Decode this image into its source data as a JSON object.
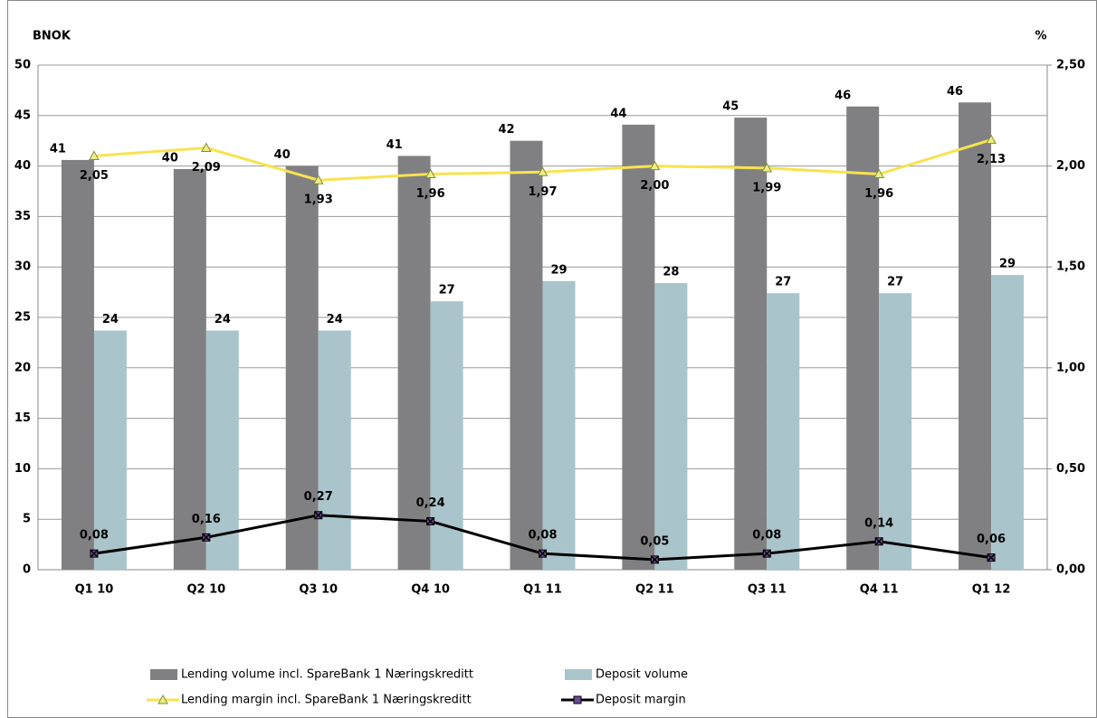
{
  "chart_data": {
    "type": "bar-line",
    "y_label": "BNOK",
    "y2_label": "%",
    "categories": [
      "Q1 10",
      "Q2 10",
      "Q3 10",
      "Q4 10",
      "Q1 11",
      "Q2 11",
      "Q3 11",
      "Q4 11",
      "Q1 12"
    ],
    "series": [
      {
        "name": "Lending volume incl. SpareBank 1 Næringskreditt",
        "type": "bar",
        "color": "#808083",
        "values": [
          40.6,
          39.7,
          40.0,
          41.0,
          42.5,
          44.1,
          44.8,
          45.9,
          46.3
        ],
        "value_labels": [
          "41",
          "40",
          "40",
          "41",
          "42",
          "44",
          "45",
          "46",
          "46"
        ]
      },
      {
        "name": "Deposit volume",
        "type": "bar",
        "color": "#a9c5cb",
        "values": [
          23.7,
          23.7,
          23.7,
          26.6,
          28.6,
          28.4,
          27.4,
          27.4,
          29.2
        ],
        "value_labels": [
          "24",
          "24",
          "24",
          "27",
          "29",
          "28",
          "27",
          "27",
          "29"
        ]
      },
      {
        "name": "Lending margin incl. SpareBank 1 Næringskreditt",
        "type": "line",
        "axis": "y2",
        "color": "#f7e34f",
        "marker": "triangle",
        "values": [
          2.05,
          2.09,
          1.93,
          1.96,
          1.97,
          2.0,
          1.99,
          1.96,
          2.13
        ],
        "value_labels": [
          "2,05",
          "2,09",
          "1,93",
          "1,96",
          "1,97",
          "2,00",
          "1,99",
          "1,96",
          "2,13"
        ]
      },
      {
        "name": "Deposit margin",
        "type": "line",
        "axis": "y2",
        "color": "#000000",
        "marker": "x",
        "values": [
          0.08,
          0.16,
          0.27,
          0.24,
          0.08,
          0.05,
          0.08,
          0.14,
          0.06
        ],
        "value_labels": [
          "0,08",
          "0,16",
          "0,27",
          "0,24",
          "0,08",
          "0,05",
          "0,08",
          "0,14",
          "0,06"
        ]
      }
    ],
    "ylim": [
      0,
      50
    ],
    "yticks": [
      0,
      5,
      10,
      15,
      20,
      25,
      30,
      35,
      40,
      45,
      50
    ],
    "y2lim": [
      0,
      2.5
    ],
    "y2ticks": [
      {
        "value": 0,
        "label": "0,00"
      },
      {
        "value": 0.5,
        "label": "0,50"
      },
      {
        "value": 1,
        "label": "1,00"
      },
      {
        "value": 1.5,
        "label": "1,50"
      },
      {
        "value": 2,
        "label": "2,00"
      },
      {
        "value": 2.5,
        "label": "2,50"
      }
    ],
    "grid": true
  }
}
